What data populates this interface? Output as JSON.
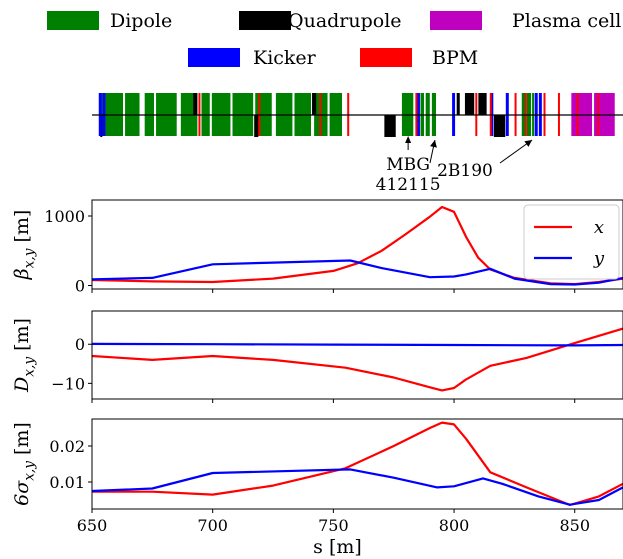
{
  "legend": {
    "entries": [
      {
        "label": "Dipole",
        "color": "#008000"
      },
      {
        "label": "Quadrupole",
        "color": "#000000"
      },
      {
        "label": "Plasma cell",
        "color": "#bf00bf"
      },
      {
        "label": "Kicker",
        "color": "#0000ff"
      },
      {
        "label": "BPM",
        "color": "#ff0000"
      }
    ]
  },
  "lattice": {
    "s_range": [
      613,
      870
    ],
    "elements": [
      {
        "type": "dipole",
        "s": [
          617.5,
          618.5
        ]
      },
      {
        "type": "dipole",
        "s": [
          619.5,
          628
        ]
      },
      {
        "type": "dipole",
        "s": [
          629,
          636
        ]
      },
      {
        "type": "dipole",
        "s": [
          638.5,
          643
        ]
      },
      {
        "type": "dipole",
        "s": [
          644,
          654
        ]
      },
      {
        "type": "dipole",
        "s": [
          656,
          664
        ]
      },
      {
        "type": "dipole",
        "s": [
          666,
          670
        ]
      },
      {
        "type": "dipole",
        "s": [
          671,
          680
        ]
      },
      {
        "type": "dipole",
        "s": [
          681,
          691
        ]
      },
      {
        "type": "dipole",
        "s": [
          692,
          700
        ]
      },
      {
        "type": "dipole",
        "s": [
          702,
          710
        ]
      },
      {
        "type": "dipole",
        "s": [
          711,
          719
        ]
      },
      {
        "type": "dipole",
        "s": [
          720.5,
          727
        ]
      },
      {
        "type": "dipole",
        "s": [
          728,
          734
        ]
      },
      {
        "type": "dipole",
        "s": [
          763,
          768.5
        ]
      },
      {
        "type": "dipole",
        "s": [
          772,
          773.7
        ]
      },
      {
        "type": "dipole",
        "s": [
          774.5,
          776.5
        ]
      },
      {
        "type": "dipole",
        "s": [
          777.5,
          779.5
        ]
      },
      {
        "type": "dipole",
        "s": [
          821,
          823
        ]
      },
      {
        "type": "dipole",
        "s": [
          823.5,
          825.5
        ]
      },
      {
        "type": "dipole",
        "s": [
          826,
          827
        ]
      },
      {
        "type": "quadrupole",
        "s": [
          617,
          618
        ],
        "side": "down"
      },
      {
        "type": "quadrupole",
        "s": [
          662,
          664
        ],
        "side": "up"
      },
      {
        "type": "quadrupole",
        "s": [
          691.5,
          693.5
        ],
        "side": "down"
      },
      {
        "type": "quadrupole",
        "s": [
          719.5,
          721.5
        ],
        "side": "up"
      },
      {
        "type": "quadrupole",
        "s": [
          754.5,
          760
        ],
        "side": "down"
      },
      {
        "type": "quadrupole",
        "s": [
          789.5,
          791
        ],
        "side": "up"
      },
      {
        "type": "quadrupole",
        "s": [
          793.5,
          798
        ],
        "side": "up"
      },
      {
        "type": "quadrupole",
        "s": [
          800,
          804
        ],
        "side": "up"
      },
      {
        "type": "quadrupole",
        "s": [
          807.5,
          813
        ],
        "side": "down"
      },
      {
        "type": "plasma",
        "s": [
          845,
          855
        ]
      },
      {
        "type": "plasma",
        "s": [
          856,
          866
        ]
      },
      {
        "type": "kicker",
        "s": 617
      },
      {
        "type": "kicker",
        "s": 618.8
      },
      {
        "type": "kicker",
        "s": 771
      },
      {
        "type": "kicker",
        "s": 788
      },
      {
        "type": "kicker",
        "s": 806.5
      },
      {
        "type": "kicker",
        "s": 814
      },
      {
        "type": "kicker",
        "s": 828
      },
      {
        "type": "kicker",
        "s": 830
      },
      {
        "type": "bpm",
        "s": 665
      },
      {
        "type": "bpm",
        "s": 694
      },
      {
        "type": "bpm",
        "s": 723.5
      },
      {
        "type": "bpm",
        "s": 737
      },
      {
        "type": "bpm",
        "s": 770
      },
      {
        "type": "bpm",
        "s": 799
      },
      {
        "type": "bpm",
        "s": 806
      },
      {
        "type": "bpm",
        "s": 818
      },
      {
        "type": "bpm",
        "s": 823
      },
      {
        "type": "bpm",
        "s": 832
      },
      {
        "type": "bpm",
        "s": 839
      },
      {
        "type": "bpm",
        "s": 848
      },
      {
        "type": "bpm",
        "s": 858
      }
    ],
    "annotations": [
      {
        "label_lines": [
          "MBG",
          "412115"
        ],
        "target_s": 766
      },
      {
        "label_lines": [
          "2B190"
        ],
        "targets_s": [
          778,
          826
        ]
      }
    ]
  },
  "chart_data": [
    {
      "type": "line",
      "ylabel": "β_{x,y} [m]",
      "xlim": [
        650,
        870
      ],
      "ylim": [
        -50,
        1230
      ],
      "yticks": [
        0,
        1000
      ],
      "ytick_labels": [
        "0",
        "1000"
      ],
      "legend": {
        "placement": "top-right"
      },
      "series": [
        {
          "name": "x",
          "color": "#ff0000",
          "x": [
            650,
            675,
            700,
            725,
            750,
            760,
            770,
            780,
            790,
            795,
            800,
            805,
            810,
            815,
            825,
            840,
            850,
            860,
            870
          ],
          "y": [
            80,
            60,
            50,
            100,
            210,
            320,
            500,
            740,
            990,
            1130,
            1060,
            700,
            400,
            230,
            110,
            30,
            20,
            50,
            100
          ]
        },
        {
          "name": "y",
          "color": "#0000ff",
          "x": [
            650,
            675,
            700,
            725,
            757,
            770,
            790,
            800,
            805,
            815,
            825,
            840,
            850,
            860,
            870
          ],
          "y": [
            90,
            110,
            305,
            330,
            360,
            250,
            120,
            130,
            160,
            240,
            100,
            20,
            15,
            40,
            110
          ]
        }
      ]
    },
    {
      "type": "line",
      "ylabel": "D_{x,y} [m]",
      "xlim": [
        650,
        870
      ],
      "ylim": [
        -14,
        8.5
      ],
      "yticks": [
        0,
        -10
      ],
      "ytick_labels": [
        "0",
        "−10"
      ],
      "series": [
        {
          "color": "#ff0000",
          "x": [
            650,
            675,
            700,
            725,
            755,
            775,
            790,
            795,
            800,
            805,
            815,
            830,
            850,
            870
          ],
          "y": [
            -3,
            -4,
            -3,
            -4,
            -6,
            -8.5,
            -11,
            -11.8,
            -11.2,
            -9,
            -5.5,
            -3.5,
            0.3,
            4
          ]
        },
        {
          "color": "#0000ff",
          "x": [
            650,
            700,
            750,
            800,
            850,
            870
          ],
          "y": [
            0.1,
            0,
            -0.1,
            -0.2,
            -0.3,
            -0.2
          ]
        }
      ]
    },
    {
      "type": "line",
      "ylabel": "6σ_{x,y} [m]",
      "xlabel": "s [m]",
      "xlim": [
        650,
        870
      ],
      "ylim": [
        0.0025,
        0.0275
      ],
      "xticks": [
        650,
        700,
        750,
        800,
        850
      ],
      "xtick_labels": [
        "650",
        "700",
        "750",
        "800",
        "850"
      ],
      "yticks": [
        0.01,
        0.02
      ],
      "ytick_labels": [
        "0.01",
        "0.02"
      ],
      "series": [
        {
          "color": "#ff0000",
          "x": [
            650,
            675,
            700,
            725,
            755,
            775,
            790,
            795,
            800,
            805,
            815,
            830,
            848,
            860,
            870
          ],
          "y": [
            0.0073,
            0.0073,
            0.0065,
            0.009,
            0.0138,
            0.02,
            0.025,
            0.0265,
            0.026,
            0.022,
            0.0127,
            0.0085,
            0.0036,
            0.006,
            0.0095
          ]
        },
        {
          "color": "#0000ff",
          "x": [
            650,
            675,
            700,
            757,
            775,
            793,
            800,
            812,
            820,
            835,
            848,
            860,
            870
          ],
          "y": [
            0.0075,
            0.0082,
            0.0125,
            0.0135,
            0.0112,
            0.0085,
            0.0088,
            0.011,
            0.0095,
            0.006,
            0.0037,
            0.005,
            0.0085
          ]
        }
      ]
    }
  ]
}
